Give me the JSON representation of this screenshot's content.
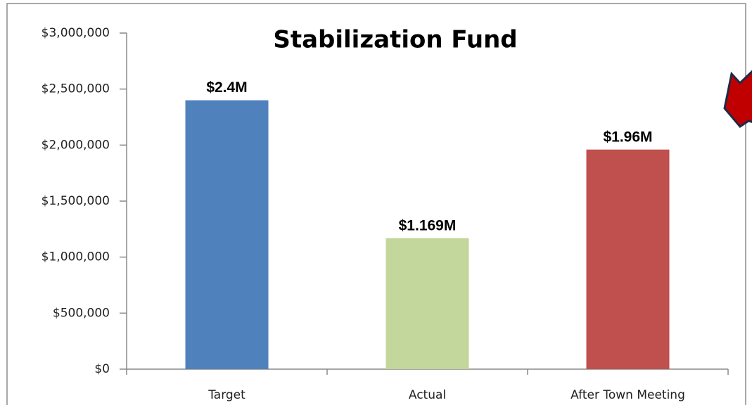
{
  "chart_data": {
    "type": "bar",
    "title": "Stabilization Fund",
    "categories": [
      "Target",
      "Actual",
      "After Town Meeting"
    ],
    "values": [
      2400000,
      1169000,
      1960000
    ],
    "value_labels": [
      "$2.4M",
      "$1.169M",
      "$1.96M"
    ],
    "colors": [
      "#4f81bd",
      "#c3d69b",
      "#c0504d"
    ],
    "ylim": [
      0,
      3000000
    ],
    "yticks": [
      {
        "value": 0,
        "label": "$0"
      },
      {
        "value": 500000,
        "label": "$500,000"
      },
      {
        "value": 1000000,
        "label": "$1,000,000"
      },
      {
        "value": 1500000,
        "label": "$1,500,000"
      },
      {
        "value": 2000000,
        "label": "$2,000,000"
      },
      {
        "value": 2500000,
        "label": "$2,500,000"
      },
      {
        "value": 3000000,
        "label": "$3,000,000"
      }
    ],
    "grid": false
  }
}
